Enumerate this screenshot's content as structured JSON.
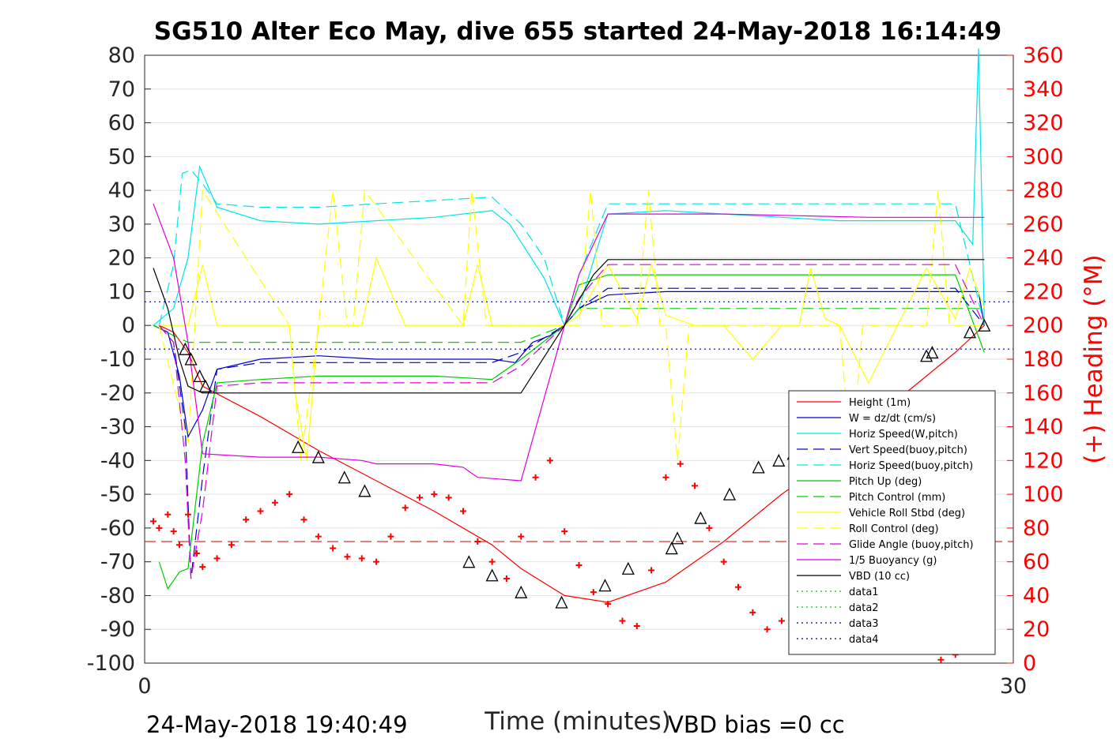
{
  "chart_data": {
    "type": "line",
    "title": "SG510 Alter Eco May, dive 655 started 24-May-2018 16:14:49",
    "xlabel": "Time (minutes)",
    "ylabel_right": "(+) Heading (°M)",
    "xlim": [
      0,
      30
    ],
    "ylim_left": [
      -100,
      80
    ],
    "ylim_right": [
      0,
      360
    ],
    "x_ticks": [
      "0",
      "30"
    ],
    "y_ticks_left": [
      "80",
      "70",
      "60",
      "50",
      "40",
      "30",
      "20",
      "10",
      "0",
      "-10",
      "-20",
      "-30",
      "-40",
      "-50",
      "-60",
      "-70",
      "-80",
      "-90",
      "-100"
    ],
    "y_ticks_right": [
      "360",
      "340",
      "320",
      "300",
      "280",
      "260",
      "240",
      "220",
      "200",
      "180",
      "160",
      "140",
      "120",
      "100",
      "80",
      "60",
      "40",
      "20",
      "0"
    ],
    "grid": true,
    "legend_position": "bottom-right",
    "footer_left": "24-May-2018 19:40:49",
    "footer_right": "VBD bias =0 cc",
    "series": [
      {
        "name": "Height (1m)",
        "color": "#ff0000",
        "style": "solid",
        "x": [
          0.5,
          1.0,
          1.5,
          2.0,
          4.0,
          6.0,
          8.0,
          10.0,
          12.0,
          13.0,
          14.5,
          16.0,
          18.0,
          20.0,
          22.0,
          24.0,
          26.0,
          28.0,
          29.0
        ],
        "y": [
          0,
          -2,
          -8,
          -18,
          -27,
          -37,
          -46,
          -55,
          -65,
          -72,
          -80,
          -82,
          -76,
          -64,
          -50,
          -38,
          -22,
          -8,
          0
        ]
      },
      {
        "name": "W = dz/dt (cm/s)",
        "color": "#0000cc",
        "style": "solid",
        "x": [
          0.3,
          0.8,
          1.2,
          1.5,
          2.0,
          2.5,
          4.0,
          6.0,
          8.0,
          10.0,
          12.0,
          12.8,
          13.4,
          14.0,
          14.5,
          15.0,
          16.0,
          18.0,
          20.0,
          22.0,
          24.0,
          26.0,
          28.0,
          28.8,
          29.0
        ],
        "y": [
          0,
          -2,
          -15,
          -33,
          -25,
          -13,
          -10,
          -9,
          -10,
          -10,
          -10,
          -11,
          -5,
          -3,
          0,
          5,
          9,
          10,
          10,
          10,
          10,
          10,
          10,
          10,
          0
        ]
      },
      {
        "name": "Horiz Speed(W,pitch)",
        "color": "#00e5e5",
        "style": "solid",
        "x": [
          0.3,
          1.0,
          1.5,
          1.9,
          2.5,
          4.0,
          6.0,
          8.0,
          10.0,
          12.0,
          12.6,
          13.2,
          13.8,
          14.5,
          15.0,
          15.6,
          16.0,
          18.0,
          20.0,
          22.0,
          24.0,
          26.0,
          28.0,
          28.6,
          28.8,
          29.0
        ],
        "y": [
          0,
          5,
          20,
          47,
          35,
          31,
          30,
          31,
          32,
          34,
          30,
          22,
          14,
          0,
          5,
          22,
          33,
          34,
          33,
          32,
          31,
          31,
          31,
          24,
          82,
          0
        ]
      },
      {
        "name": "Vert Speed(buoy,pitch)",
        "color": "#0000cc",
        "style": "dash",
        "x": [
          0.5,
          1.0,
          1.4,
          1.6,
          2.0,
          2.5,
          4.0,
          6.0,
          8.0,
          10.0,
          12.0,
          13.0,
          14.5,
          15.0,
          16.0,
          18.0,
          20.0,
          22.0,
          24.0,
          26.0,
          28.0,
          29.0
        ],
        "y": [
          0,
          -5,
          -30,
          -75,
          -45,
          -13,
          -11,
          -11,
          -11,
          -11,
          -11,
          -8,
          0,
          5,
          11,
          11,
          11,
          11,
          11,
          11,
          11,
          0
        ]
      },
      {
        "name": "Horiz Speed(buoy,pitch)",
        "color": "#00e5e5",
        "style": "dash",
        "x": [
          0.5,
          1.0,
          1.3,
          1.6,
          2.0,
          2.5,
          4.0,
          6.0,
          8.0,
          10.0,
          12.0,
          13.0,
          13.8,
          14.5,
          15.0,
          16.0,
          18.0,
          20.0,
          22.0,
          24.0,
          26.0,
          28.0,
          29.0
        ],
        "y": [
          0,
          18,
          45,
          46,
          42,
          36,
          35,
          35,
          36,
          37,
          38,
          30,
          20,
          0,
          15,
          36,
          36,
          36,
          36,
          36,
          36,
          36,
          0
        ]
      },
      {
        "name": "Pitch Up (deg)",
        "color": "#00cc00",
        "style": "solid",
        "x": [
          0.5,
          0.8,
          1.2,
          1.5,
          2.0,
          2.5,
          4.0,
          6.0,
          8.0,
          10.0,
          12.0,
          13.0,
          14.5,
          15.0,
          16.0,
          18.0,
          20.0,
          22.0,
          24.0,
          26.0,
          28.0,
          29.0
        ],
        "y": [
          -70,
          -78,
          -73,
          -72,
          -35,
          -17,
          -16,
          -15,
          -15,
          -15,
          -16,
          -10,
          0,
          12,
          15,
          15,
          15,
          15,
          15,
          15,
          15,
          -8
        ]
      },
      {
        "name": "Pitch Control (mm)",
        "color": "#00cc00",
        "style": "dash",
        "x": [
          0.3,
          1.0,
          1.5,
          2.0,
          12.0,
          13.0,
          14.5,
          15.0,
          29.0
        ],
        "y": [
          0,
          -3,
          -5,
          -5,
          -5,
          -5,
          0,
          5,
          5
        ]
      },
      {
        "name": "Vehicle Roll Stbd (deg)",
        "color": "#ffff00",
        "style": "solid",
        "x": [
          0.5,
          1.5,
          2.0,
          2.5,
          4.0,
          5.0,
          5.2,
          5.6,
          6.0,
          6.4,
          6.8,
          7.0,
          7.5,
          8.0,
          9.0,
          10.0,
          11.0,
          11.5,
          12.0,
          13.0,
          14.5,
          15.0,
          16.0,
          17.0,
          17.5,
          18.0,
          19.0,
          20.0,
          21.0,
          22.0,
          22.6,
          23.0,
          23.5,
          24.0,
          25.0,
          26.0,
          27.0,
          28.0,
          28.5,
          29.0
        ],
        "y": [
          0,
          0,
          18,
          0,
          0,
          0,
          -20,
          -40,
          0,
          0,
          0,
          0,
          0,
          20,
          0,
          0,
          0,
          18,
          0,
          0,
          0,
          3,
          18,
          2,
          18,
          3,
          0,
          0,
          -10,
          0,
          0,
          17,
          2,
          0,
          -17,
          0,
          17,
          2,
          17,
          5
        ]
      },
      {
        "name": "Roll Control (deg)",
        "color": "#ffff00",
        "style": "dash",
        "x": [
          0.5,
          1.5,
          2.0,
          5.0,
          5.4,
          6.0,
          6.5,
          7.0,
          7.2,
          7.6,
          11.0,
          11.3,
          11.8,
          15.0,
          15.4,
          15.8,
          17.0,
          17.4,
          17.8,
          18.0,
          18.4,
          18.8,
          24.0,
          24.4,
          24.8,
          27.0,
          27.4,
          27.8,
          29.0
        ],
        "y": [
          0,
          -35,
          40,
          0,
          -40,
          0,
          40,
          0,
          0,
          40,
          0,
          40,
          0,
          0,
          40,
          0,
          0,
          40,
          0,
          0,
          -40,
          0,
          0,
          -40,
          0,
          0,
          40,
          0,
          0
        ]
      },
      {
        "name": "Glide Angle (buoy,pitch)",
        "color": "#dd00dd",
        "style": "dash",
        "x": [
          0.5,
          1.0,
          1.4,
          1.6,
          2.0,
          2.5,
          4.0,
          6.0,
          8.0,
          10.0,
          12.0,
          13.0,
          14.5,
          15.0,
          16.0,
          18.0,
          20.0,
          22.0,
          24.0,
          26.0,
          28.0,
          29.0
        ],
        "y": [
          0,
          -5,
          -40,
          -75,
          -55,
          -18,
          -17,
          -17,
          -17,
          -17,
          -17,
          -12,
          0,
          8,
          18,
          18,
          18,
          18,
          18,
          18,
          18,
          0
        ]
      },
      {
        "name": "1/5 Buoyancy (g)",
        "color": "#dd00dd",
        "style": "solid",
        "x": [
          0.3,
          1.0,
          1.5,
          2.0,
          4.0,
          6.0,
          7.5,
          8.0,
          10.0,
          11.0,
          11.5,
          13.0,
          14.5,
          15.0,
          16.0,
          20.0,
          25.0,
          29.0
        ],
        "y": [
          36,
          20,
          -5,
          -38,
          -39,
          -39,
          -40,
          -41,
          -41,
          -42,
          -45,
          -46,
          0,
          15,
          33,
          33,
          32,
          32
        ]
      },
      {
        "name": "VBD (10 cc)",
        "color": "#000000",
        "style": "solid",
        "x": [
          0.3,
          0.8,
          1.2,
          1.5,
          2.0,
          3.0,
          5.0,
          10.0,
          13.0,
          14.5,
          15.5,
          16.0,
          20.0,
          25.0,
          29.0
        ],
        "y": [
          17,
          5,
          -10,
          -18,
          -20,
          -20,
          -20,
          -20,
          -20,
          0,
          15,
          19.5,
          19.5,
          19.5,
          19.5
        ]
      },
      {
        "name": "data1",
        "color": "#00cc00",
        "style": "dot",
        "x": [],
        "y": []
      },
      {
        "name": "data2",
        "color": "#00cc00",
        "style": "dot",
        "x": [],
        "y": []
      },
      {
        "name": "data3",
        "color": "#0000aa",
        "style": "dot",
        "x": [
          0,
          30
        ],
        "y": [
          7,
          7
        ]
      },
      {
        "name": "data4",
        "color": "#0000aa",
        "style": "dot",
        "x": [
          0,
          30
        ],
        "y": [
          -7,
          -7
        ]
      }
    ],
    "heading_reference_line": {
      "color": "#cc0000",
      "style": "dash",
      "y": -64
    },
    "heading_points": {
      "axis": "right",
      "color": "#ff0000",
      "marker": "+",
      "x": [
        0.3,
        0.5,
        0.8,
        1.0,
        1.2,
        1.5,
        1.8,
        2.0,
        2.5,
        3.0,
        3.5,
        4.0,
        4.5,
        5.0,
        5.5,
        6.0,
        6.5,
        7.0,
        7.5,
        8.0,
        8.5,
        9.0,
        9.5,
        10.0,
        10.5,
        11.0,
        11.5,
        12.0,
        12.5,
        13.0,
        13.5,
        14.0,
        14.5,
        15.0,
        15.5,
        16.0,
        16.5,
        17.0,
        17.5,
        18.0,
        18.5,
        19.0,
        19.5,
        20.0,
        20.5,
        21.0,
        21.5,
        22.0,
        22.5,
        23.0,
        23.5,
        24.0,
        24.5,
        25.0,
        25.5,
        26.0,
        26.5,
        27.0,
        27.5,
        28.0,
        28.5
      ],
      "y": [
        84,
        80,
        88,
        78,
        70,
        88,
        65,
        57,
        62,
        70,
        85,
        90,
        95,
        100,
        85,
        75,
        68,
        63,
        62,
        60,
        75,
        92,
        98,
        100,
        98,
        90,
        72,
        60,
        50,
        75,
        110,
        120,
        78,
        58,
        42,
        35,
        25,
        22,
        55,
        110,
        118,
        105,
        80,
        60,
        45,
        30,
        20,
        25,
        48,
        70,
        85,
        70,
        60,
        45,
        40,
        30,
        20,
        10,
        2,
        5,
        8
      ]
    },
    "position_markers": {
      "color": "#000000",
      "marker": "triangle",
      "x": [
        1.4,
        1.6,
        1.9,
        2.1,
        5.3,
        6.0,
        6.9,
        7.6,
        11.2,
        12.0,
        13.0,
        14.4,
        15.9,
        16.7,
        18.2,
        18.4,
        19.2,
        20.2,
        21.2,
        21.9,
        22.4,
        22.8,
        27.0,
        27.2,
        28.5,
        29.0
      ],
      "y": [
        -7,
        -10,
        -15,
        -18,
        -36,
        -39,
        -45,
        -49,
        -70,
        -74,
        -79,
        -82,
        -77,
        -72,
        -66,
        -63,
        -57,
        -50,
        -42,
        -40,
        -38,
        -35,
        -9,
        -8,
        -2,
        0
      ]
    }
  }
}
